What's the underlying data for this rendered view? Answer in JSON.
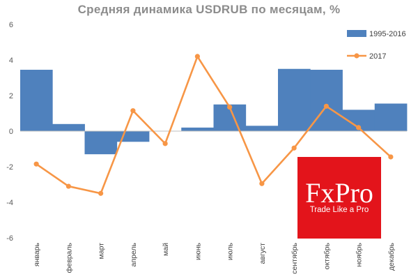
{
  "chart_data": {
    "type": "bar",
    "title": "Средняя динамика USDRUB по месяцам, %",
    "categories": [
      "январь",
      "февраль",
      "март",
      "апрель",
      "май",
      "июнь",
      "июль",
      "август",
      "сентябрь",
      "октябрь",
      "ноябрь",
      "декабрь"
    ],
    "ylim": [
      -6,
      6
    ],
    "yticks": [
      -6,
      -4,
      -2,
      0,
      2,
      4,
      6
    ],
    "grid": false,
    "legend_position": "top-right",
    "series": [
      {
        "name": "1995-2016",
        "kind": "bar",
        "color": "#4f81bd",
        "values": [
          3.45,
          0.4,
          -1.3,
          -0.6,
          0.0,
          0.2,
          1.5,
          0.3,
          3.5,
          3.45,
          1.2,
          1.55
        ]
      },
      {
        "name": "2017",
        "kind": "line",
        "color": "#f79646",
        "values": [
          -1.85,
          -3.1,
          -3.5,
          1.15,
          -0.7,
          4.2,
          1.35,
          -2.95,
          -0.95,
          1.4,
          0.2,
          -1.45
        ]
      }
    ]
  },
  "watermark": {
    "brand": "FxPro",
    "slogan": "Trade Like a Pro"
  }
}
